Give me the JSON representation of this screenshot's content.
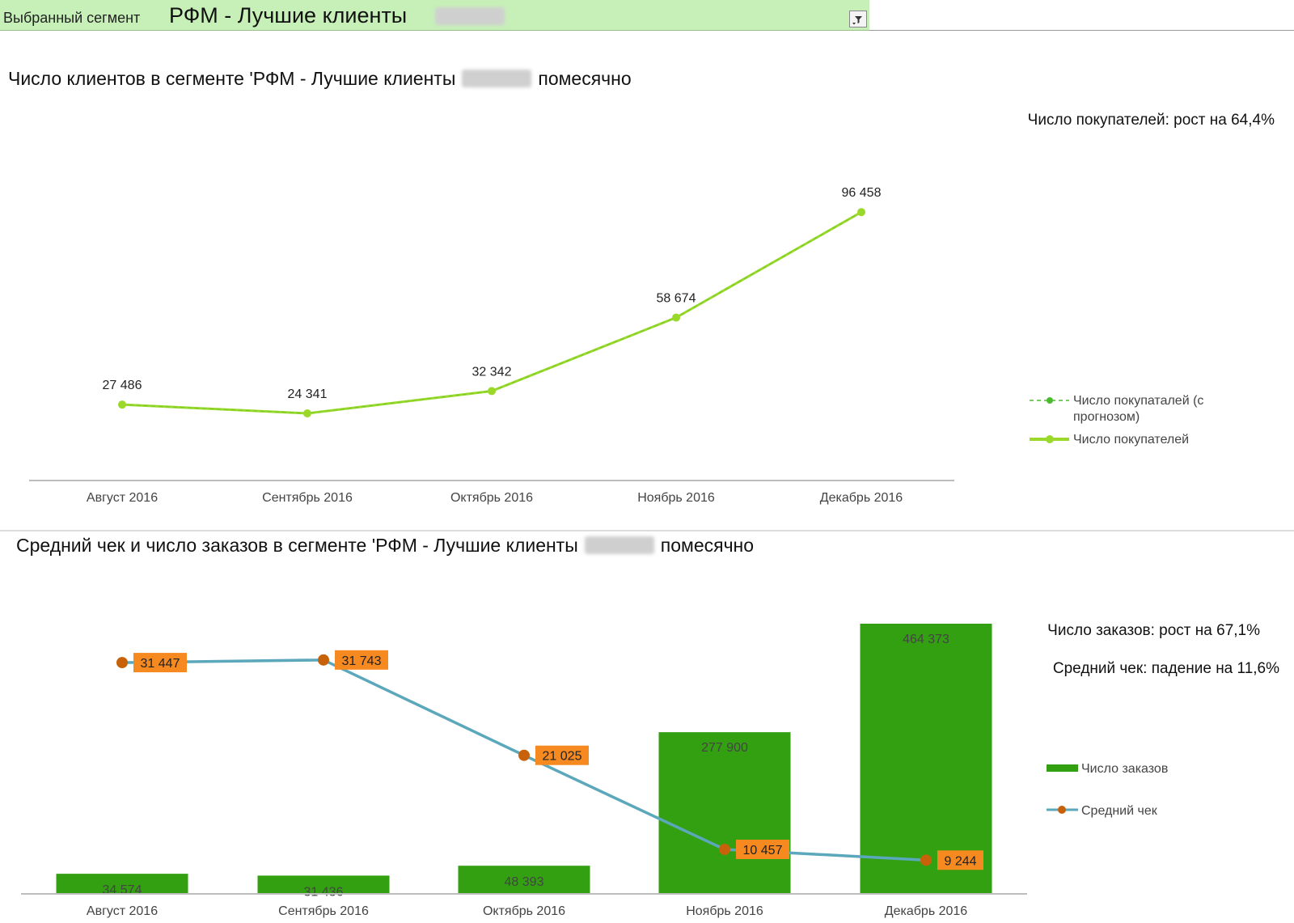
{
  "segment_bar": {
    "label": "Выбранный сегмент",
    "value": "РФМ - Лучшие клиенты"
  },
  "chart_data": [
    {
      "type": "line",
      "title_prefix": "Число клиентов в сегменте 'РФМ - Лучшие клиенты",
      "title_suffix": "помесячно",
      "note": "Число покупателей: рост на 64,4%",
      "categories": [
        "Август 2016",
        "Сентябрь 2016",
        "Октябрь 2016",
        "Ноябрь 2016",
        "Декабрь 2016"
      ],
      "series": [
        {
          "name": "Число покупаталей (с прогнозом)",
          "values": [
            27486,
            24341,
            32342,
            58674,
            96458
          ],
          "style": "dashed"
        },
        {
          "name": "Число покупателей",
          "values": [
            27486,
            24341,
            32342,
            58674,
            96458
          ],
          "style": "solid"
        }
      ],
      "data_labels": [
        "27 486",
        "24 341",
        "32 342",
        "58 674",
        "96 458"
      ],
      "legend_position": "right",
      "grid": false
    },
    {
      "type": "bar",
      "title_prefix": "Средний чек и число заказов в сегменте 'РФМ - Лучшие клиенты",
      "title_suffix": "помесячно",
      "notes": [
        "Число заказов: рост на 67,1%",
        "Средний чек: падение на 11,6%"
      ],
      "categories": [
        "Август 2016",
        "Сентябрь 2016",
        "Октябрь 2016",
        "Ноябрь 2016",
        "Декабрь 2016"
      ],
      "series": [
        {
          "name": "Число заказов",
          "type": "bar",
          "values": [
            34574,
            31436,
            48393,
            277900,
            464373
          ],
          "labels": [
            "34 574",
            "31 436",
            "48 393",
            "277 900",
            "464 373"
          ]
        },
        {
          "name": "Средний чек",
          "type": "line",
          "values": [
            31447,
            31743,
            21025,
            10457,
            9244
          ],
          "labels": [
            "31 447",
            "31 743",
            "21 025",
            "10 457",
            "9 244"
          ]
        }
      ],
      "legend_position": "right",
      "grid": false
    }
  ],
  "colors": {
    "customers_line": "#9ad92a",
    "customers_dashed": "#4dbb2e",
    "orders_bar": "#33a012",
    "avg_check_line": "#5ba7bb",
    "avg_check_marker": "#c8620a",
    "avg_check_label_bg": "#f6891f",
    "segment_bar_bg": "#c7f0b8"
  }
}
